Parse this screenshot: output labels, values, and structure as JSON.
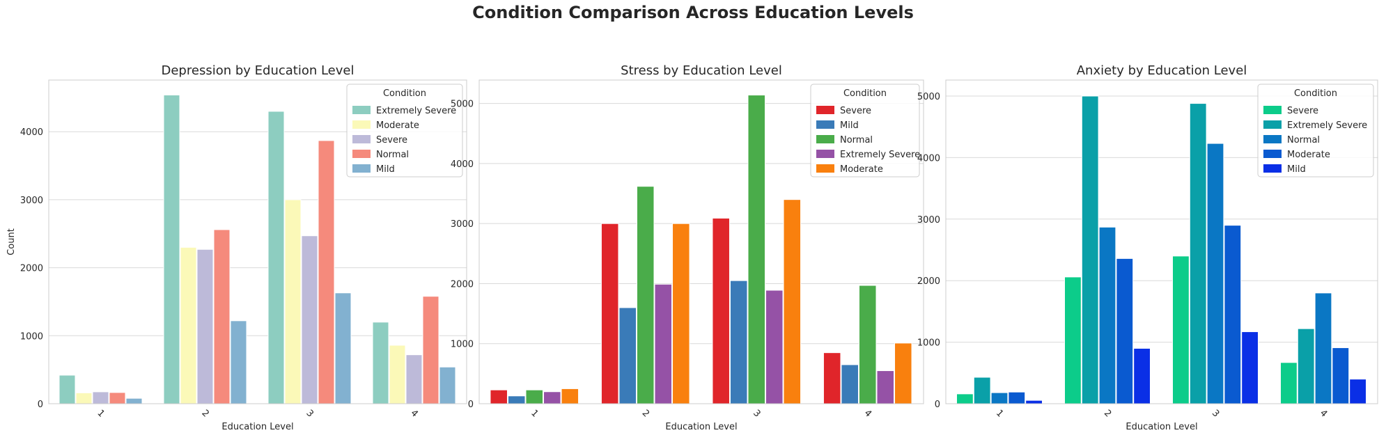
{
  "suptitle": "Condition Comparison Across Education Levels",
  "chart_data": [
    {
      "type": "bar",
      "title": "Depression by Education Level",
      "xlabel": "Education Level",
      "ylabel": "Count",
      "categories": [
        "1",
        "2",
        "3",
        "4"
      ],
      "ylim": [
        0,
        4760
      ],
      "yticks": [
        0,
        1000,
        2000,
        3000,
        4000
      ],
      "grid": true,
      "legend": {
        "title": "Condition",
        "placement": "top-right"
      },
      "series": [
        {
          "name": "Extremely Severe",
          "color": "#8dcdc0",
          "values": [
            420,
            4540,
            4300,
            1200
          ]
        },
        {
          "name": "Moderate",
          "color": "#fbf9b8",
          "values": [
            160,
            2300,
            3000,
            860
          ]
        },
        {
          "name": "Severe",
          "color": "#bdbad9",
          "values": [
            175,
            2270,
            2470,
            720
          ]
        },
        {
          "name": "Normal",
          "color": "#f58a7c",
          "values": [
            165,
            2560,
            3870,
            1580
          ]
        },
        {
          "name": "Mild",
          "color": "#82b1d0",
          "values": [
            80,
            1220,
            1630,
            540
          ]
        }
      ]
    },
    {
      "type": "bar",
      "title": "Stress by Education Level",
      "xlabel": "Education Level",
      "ylabel": "",
      "categories": [
        "1",
        "2",
        "3",
        "4"
      ],
      "ylim": [
        0,
        5390
      ],
      "yticks": [
        0,
        1000,
        2000,
        3000,
        4000,
        5000
      ],
      "grid": true,
      "legend": {
        "title": "Condition",
        "placement": "top-right"
      },
      "series": [
        {
          "name": "Severe",
          "color": "#e0252a",
          "values": [
            230,
            3000,
            3090,
            850
          ]
        },
        {
          "name": "Mild",
          "color": "#3a7bb8",
          "values": [
            130,
            1600,
            2050,
            650
          ]
        },
        {
          "name": "Normal",
          "color": "#4aac4a",
          "values": [
            230,
            3620,
            5140,
            1970
          ]
        },
        {
          "name": "Extremely Severe",
          "color": "#9552a6",
          "values": [
            200,
            1990,
            1890,
            550
          ]
        },
        {
          "name": "Moderate",
          "color": "#f9800e",
          "values": [
            250,
            3000,
            3400,
            1010
          ]
        }
      ]
    },
    {
      "type": "bar",
      "title": "Anxiety by Education Level",
      "xlabel": "Education Level",
      "ylabel": "",
      "categories": [
        "1",
        "2",
        "3",
        "4"
      ],
      "ylim": [
        0,
        5260
      ],
      "yticks": [
        0,
        1000,
        2000,
        3000,
        4000,
        5000
      ],
      "grid": true,
      "legend": {
        "title": "Condition",
        "placement": "top-right"
      },
      "series": [
        {
          "name": "Severe",
          "color": "#0ccc8a",
          "values": [
            160,
            2060,
            2400,
            670
          ]
        },
        {
          "name": "Extremely Severe",
          "color": "#0aa0a8",
          "values": [
            430,
            5000,
            4880,
            1220
          ]
        },
        {
          "name": "Normal",
          "color": "#0a77c4",
          "values": [
            180,
            2870,
            4230,
            1800
          ]
        },
        {
          "name": "Moderate",
          "color": "#0a5ad0",
          "values": [
            190,
            2360,
            2900,
            910
          ]
        },
        {
          "name": "Mild",
          "color": "#0a2fe6",
          "values": [
            55,
            900,
            1170,
            400
          ]
        }
      ]
    }
  ]
}
